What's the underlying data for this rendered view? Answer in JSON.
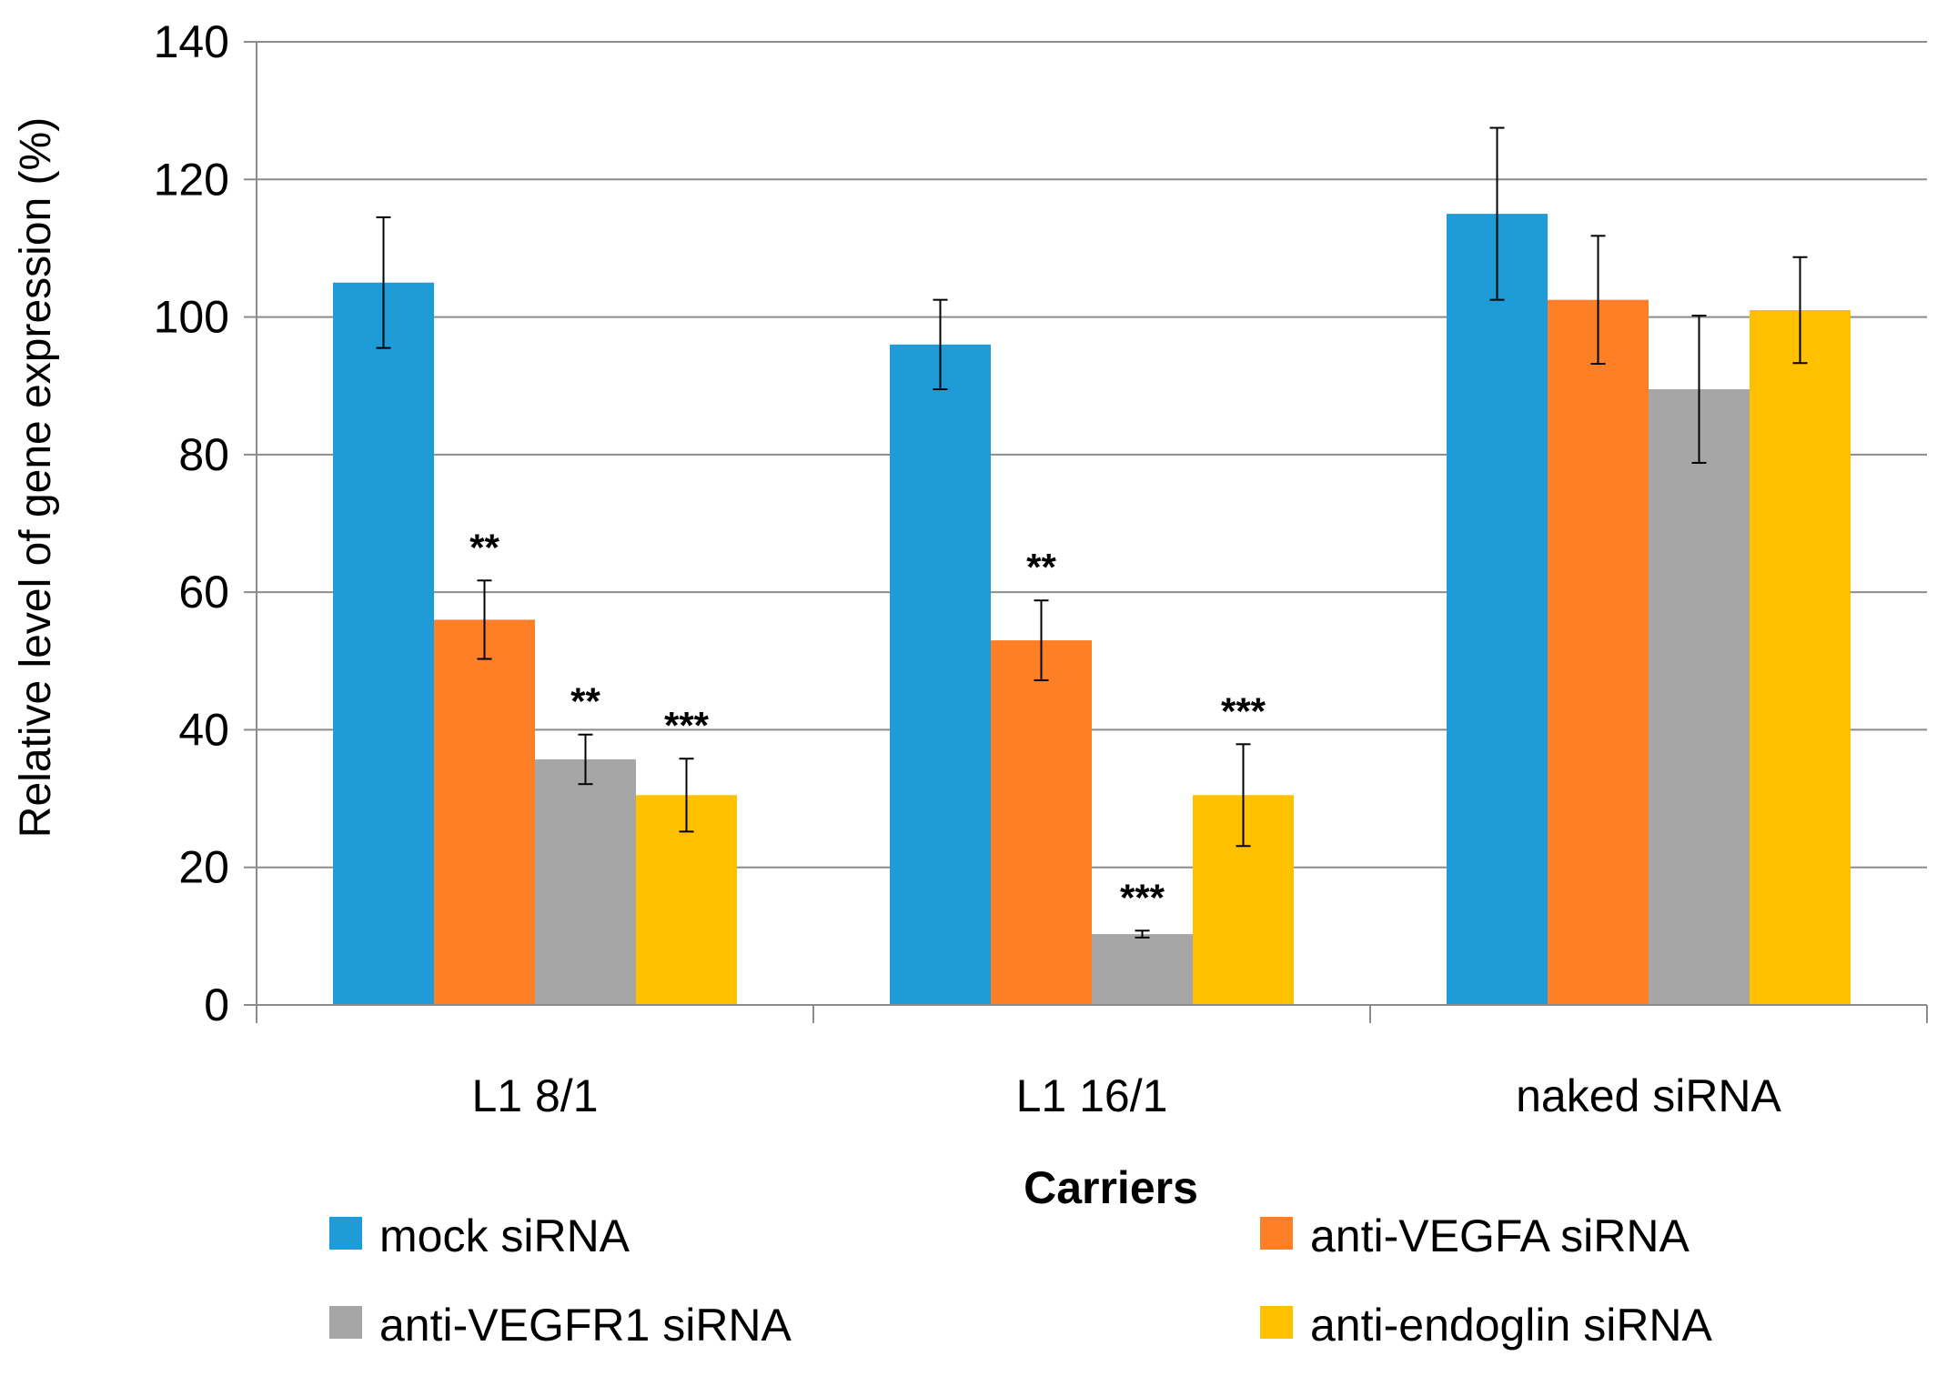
{
  "chart_data": {
    "type": "bar",
    "title": "",
    "xlabel": "Carriers",
    "ylabel": "Relative level of gene expression (%)",
    "ylim": [
      0,
      140
    ],
    "yticks": [
      0,
      20,
      40,
      60,
      80,
      100,
      120,
      140
    ],
    "grid": true,
    "legend_position": "bottom",
    "categories": [
      "L1 8/1",
      "L1 16/1",
      "naked siRNA"
    ],
    "series": [
      {
        "name": "mock siRNA",
        "color": "#1F9BD8",
        "values": [
          105,
          96,
          115
        ],
        "errors": [
          9.5,
          6.5,
          12.5
        ],
        "significance": [
          "",
          "",
          ""
        ]
      },
      {
        "name": "anti-VEGFA siRNA",
        "color": "#FF7F27",
        "values": [
          56,
          53,
          102.5
        ],
        "errors": [
          5.7,
          5.8,
          9.3
        ],
        "significance": [
          "**",
          "**",
          ""
        ]
      },
      {
        "name": "anti-VEGFR1 siRNA",
        "color": "#A6A6A6",
        "values": [
          35.7,
          10.3,
          89.5
        ],
        "errors": [
          3.6,
          0.5,
          10.7
        ],
        "significance": [
          "**",
          "***",
          ""
        ]
      },
      {
        "name": "anti-endoglin siRNA",
        "color": "#FFC000",
        "values": [
          30.5,
          30.5,
          101
        ],
        "errors": [
          5.3,
          7.4,
          7.7
        ],
        "significance": [
          "***",
          "***",
          ""
        ]
      }
    ]
  }
}
